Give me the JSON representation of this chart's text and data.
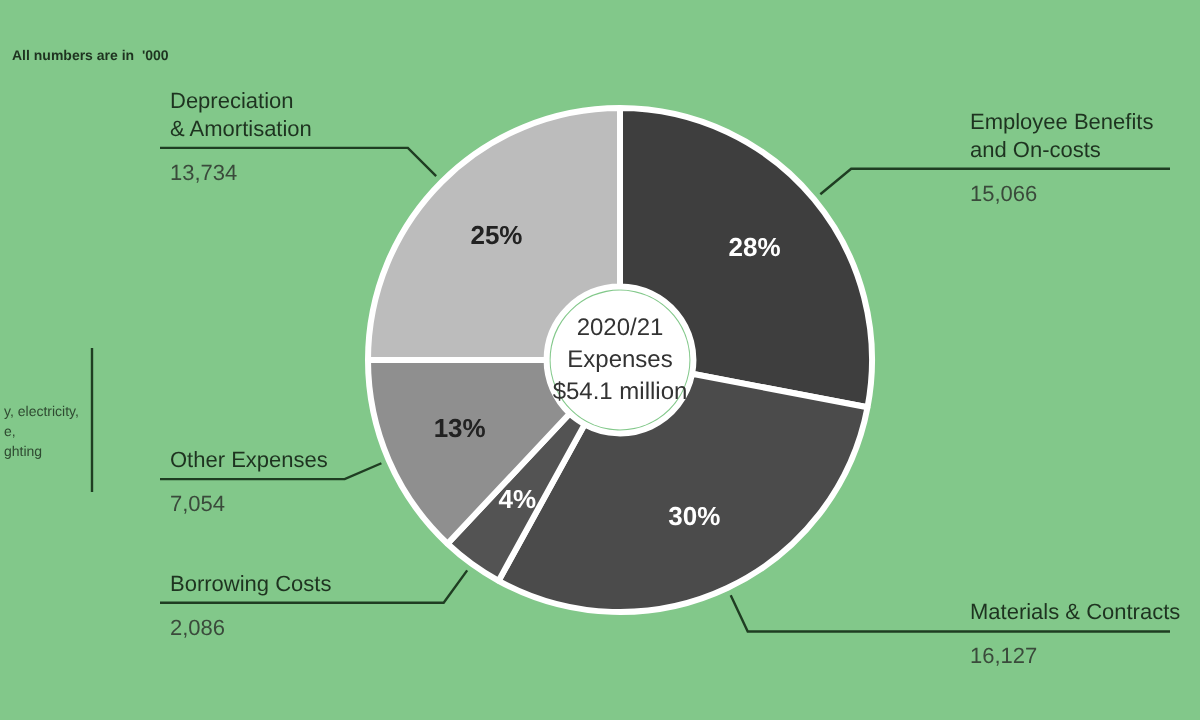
{
  "chart_data": {
    "type": "donut",
    "title": "2020/21\nExpenses\n$54.1 million",
    "categories": [
      "Employee Benefits\nand On-costs",
      "Materials & Contracts",
      "Borrowing Costs",
      "Other Expenses",
      "Depreciation\n& Amortisation"
    ],
    "values": [
      28,
      30,
      4,
      13,
      25
    ],
    "value_labels": [
      "28%",
      "30%",
      "4%",
      "13%",
      "25%"
    ],
    "colors": [
      "#3e3e3e",
      "#4b4b4b",
      "#535353",
      "#8f8f8f",
      "#bcbcbc"
    ],
    "annotations": [
      "All numbers are in  '000",
      "y, electricity,\ne,\nghting",
      {
        "text": "15,066",
        "x": "Employee Benefits\nand On-costs"
      },
      {
        "text": "16,127",
        "x": "Materials & Contracts"
      },
      {
        "text": "2,086",
        "x": "Borrowing Costs"
      },
      {
        "text": "7,054",
        "x": "Other Expenses"
      },
      {
        "text": "13,734",
        "x": "Depreciation\n& Amortisation"
      }
    ],
    "legend": false
  }
}
